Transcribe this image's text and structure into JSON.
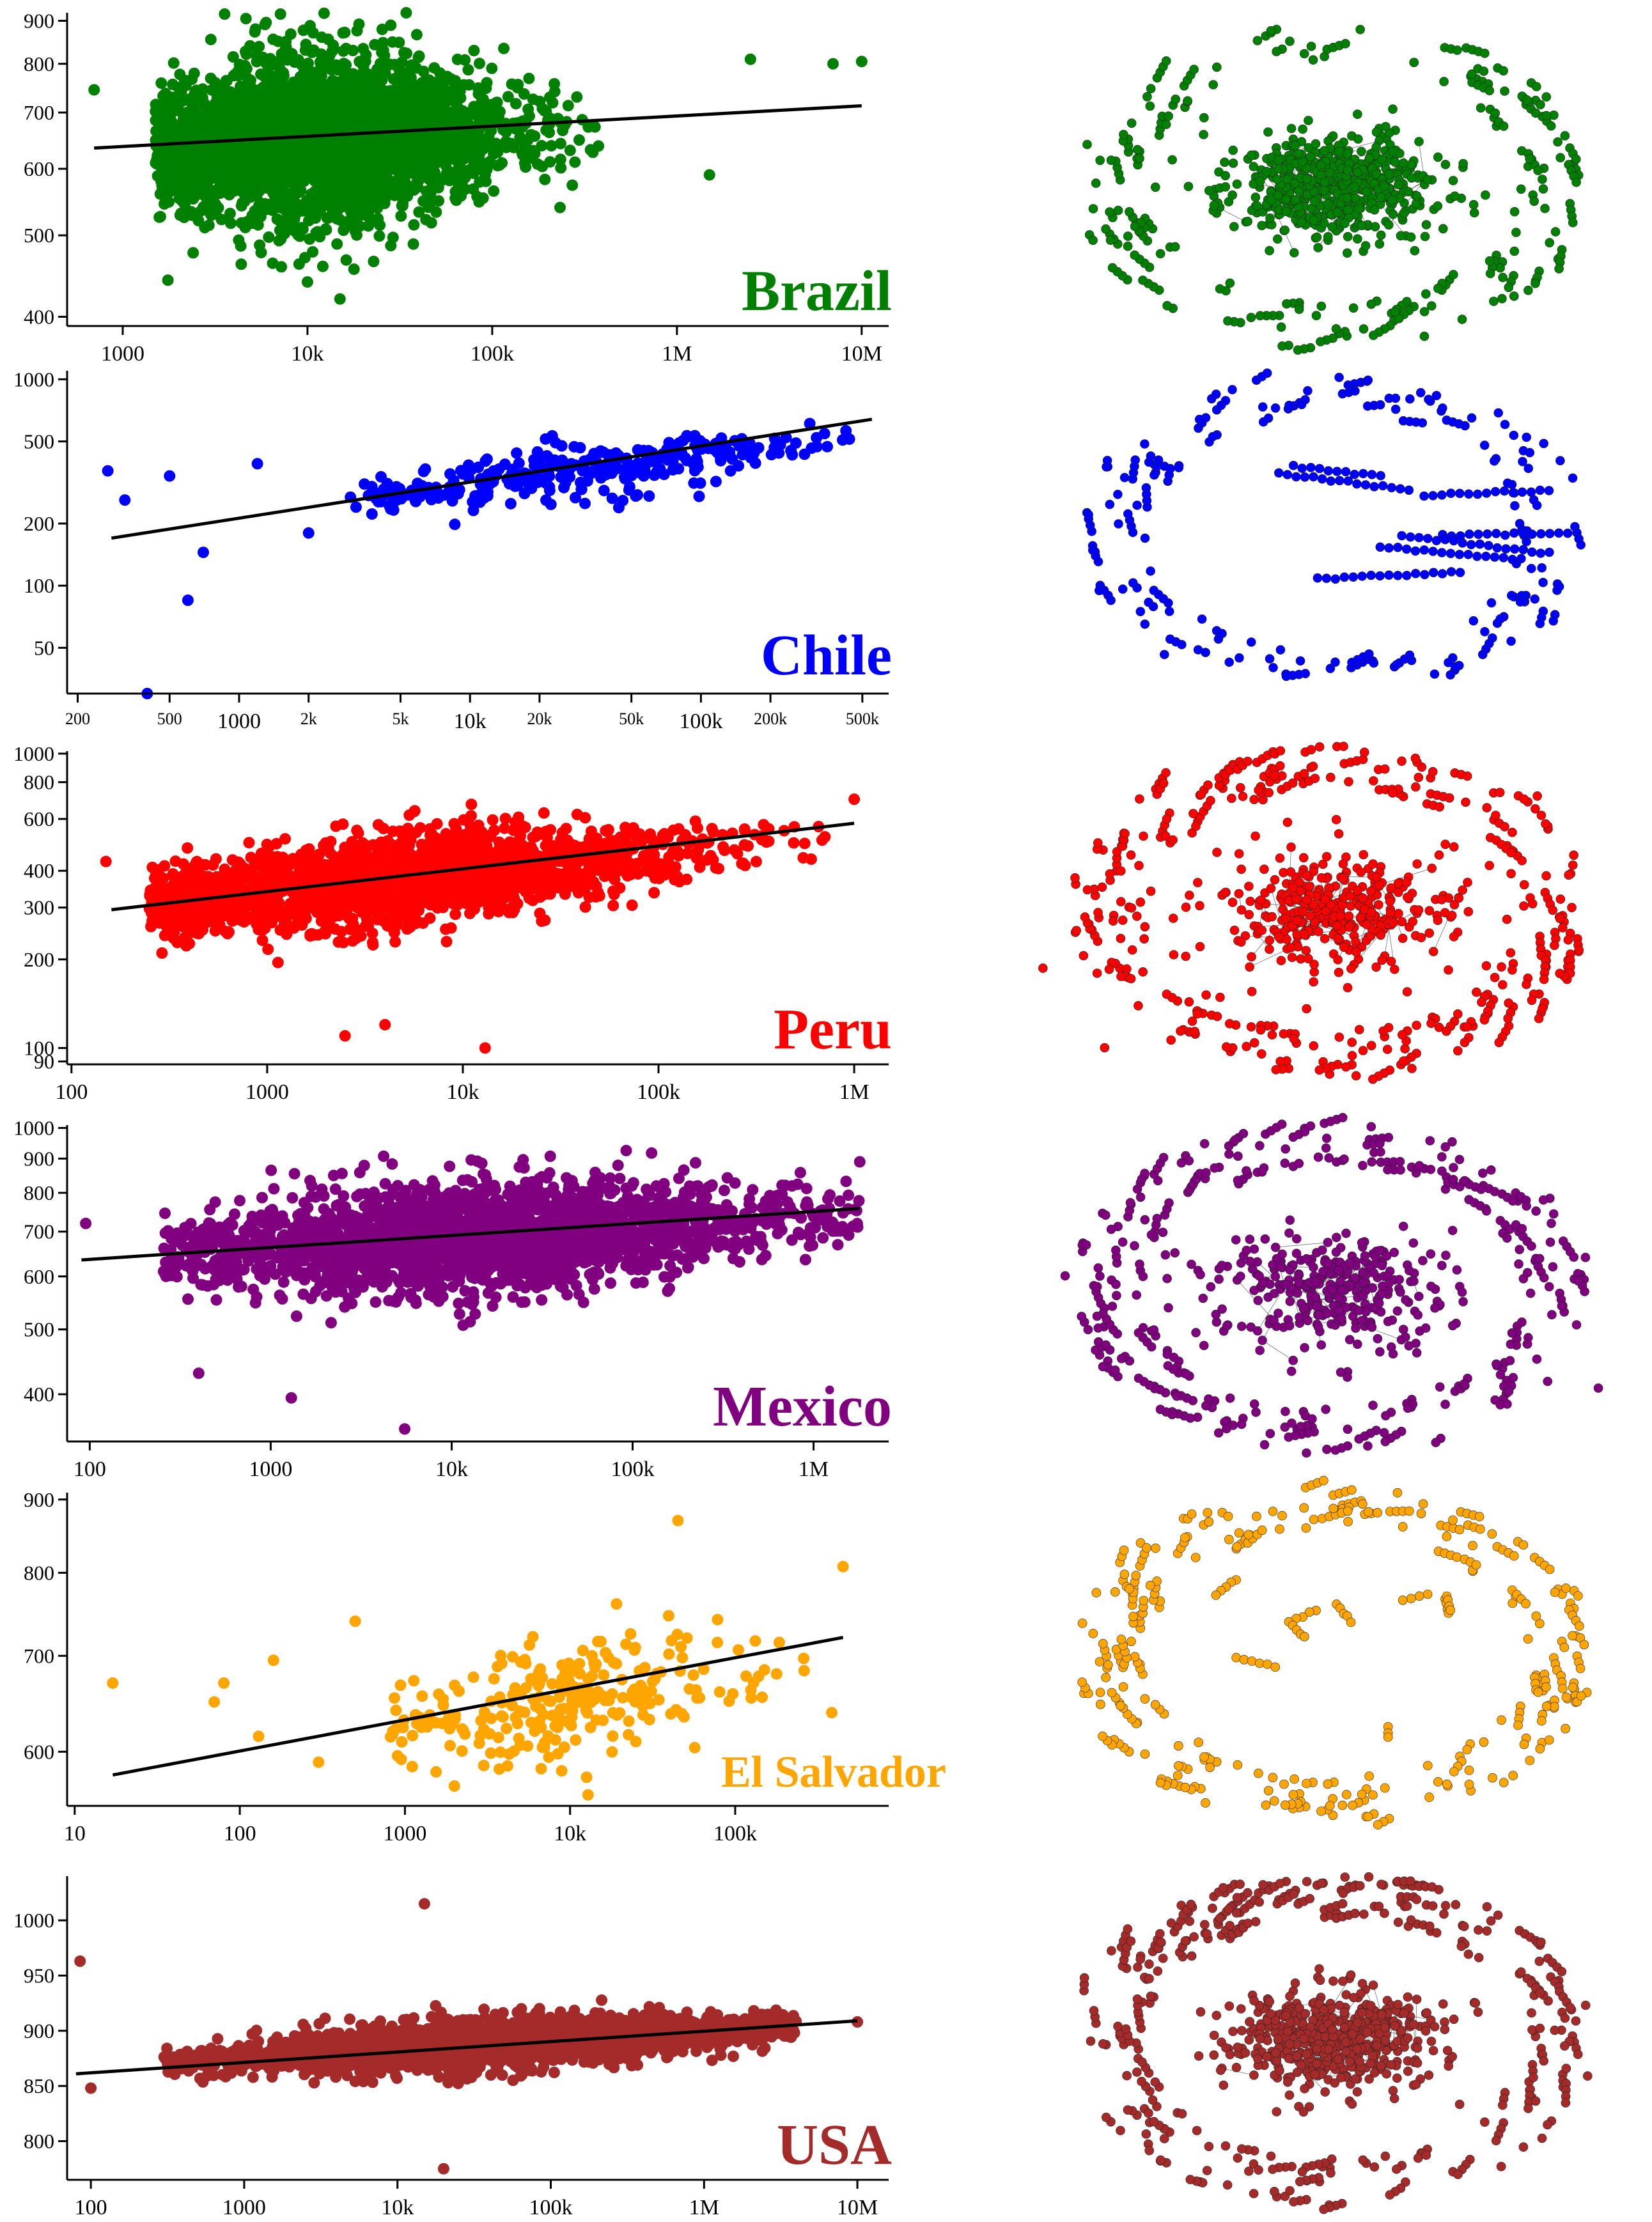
{
  "chart_data": [
    {
      "type": "scatter",
      "country": "Brazil",
      "color": "#008000",
      "x_scale": "log",
      "y_scale": "log",
      "xlim": [
        500,
        14000000
      ],
      "ylim": [
        390,
        920
      ],
      "x_ticks": [
        1000,
        10000,
        100000,
        1000000,
        10000000
      ],
      "x_tick_labels": [
        "1000",
        "10k",
        "100k",
        "1M",
        "10M"
      ],
      "y_ticks": [
        400,
        500,
        600,
        700,
        800,
        900
      ],
      "y_tick_labels": [
        "400",
        "500",
        "600",
        "700",
        "800",
        "900"
      ],
      "trend_line": {
        "x": [
          700,
          10000000
        ],
        "y": [
          635,
          713
        ]
      },
      "point_cloud": {
        "count": 3000,
        "x_range": [
          1500,
          400000
        ],
        "x_center": 12000,
        "y_center": 650,
        "y_spread": 0.11
      },
      "outliers": [
        {
          "x": 15000,
          "y": 420
        },
        {
          "x": 10000,
          "y": 440
        },
        {
          "x": 700,
          "y": 745
        },
        {
          "x": 10000000,
          "y": 805
        },
        {
          "x": 7000000,
          "y": 800
        },
        {
          "x": 1500000,
          "y": 590
        },
        {
          "x": 2500000,
          "y": 810
        },
        {
          "x": 3000,
          "y": 855
        }
      ]
    },
    {
      "type": "scatter",
      "country": "Chile",
      "color": "#0000ff",
      "x_scale": "log",
      "y_scale": "log",
      "xlim": [
        180,
        650000
      ],
      "ylim": [
        30,
        1100
      ],
      "x_ticks": [
        200,
        500,
        1000,
        2000,
        5000,
        10000,
        20000,
        50000,
        100000,
        200000,
        500000
      ],
      "x_tick_labels": [
        "200",
        "500",
        "1000",
        "2k",
        "5k",
        "10k",
        "20k",
        "50k",
        "100k",
        "200k",
        "500k"
      ],
      "y_ticks": [
        50,
        100,
        200,
        500,
        1000
      ],
      "y_tick_labels": [
        "50",
        "100",
        "200",
        "500",
        "1000"
      ],
      "trend_line": {
        "x": [
          280,
          550000
        ],
        "y": [
          170,
          640
        ]
      },
      "point_cloud": {
        "count": 320,
        "x_range": [
          3000,
          550000
        ],
        "x_center": 30000,
        "y_center": 360,
        "y_spread": 0.14
      },
      "outliers": [
        {
          "x": 400,
          "y": 30
        },
        {
          "x": 600,
          "y": 85
        },
        {
          "x": 700,
          "y": 145
        },
        {
          "x": 270,
          "y": 360
        },
        {
          "x": 320,
          "y": 260
        },
        {
          "x": 500,
          "y": 340
        },
        {
          "x": 1200,
          "y": 390
        },
        {
          "x": 2000,
          "y": 180
        }
      ]
    },
    {
      "type": "scatter",
      "country": "Peru",
      "color": "#ff0000",
      "x_scale": "log",
      "y_scale": "log",
      "xlim": [
        95,
        1500000
      ],
      "ylim": [
        88,
        1020
      ],
      "x_ticks": [
        100,
        1000,
        10000,
        100000,
        1000000
      ],
      "x_tick_labels": [
        "100",
        "1000",
        "10k",
        "100k",
        "1M"
      ],
      "y_ticks": [
        90,
        100,
        200,
        300,
        400,
        600,
        800,
        1000
      ],
      "y_tick_labels": [
        "90",
        "100",
        "200",
        "300",
        "400",
        "600",
        "800",
        "1000"
      ],
      "trend_line": {
        "x": [
          160,
          1000000
        ],
        "y": [
          295,
          580
        ]
      },
      "point_cloud": {
        "count": 2200,
        "x_range": [
          250,
          900000
        ],
        "x_center": 4000,
        "y_center": 370,
        "y_spread": 0.16
      },
      "outliers": [
        {
          "x": 13000,
          "y": 100
        },
        {
          "x": 2500,
          "y": 110
        },
        {
          "x": 4000,
          "y": 120
        },
        {
          "x": 150,
          "y": 430
        },
        {
          "x": 1000000,
          "y": 700
        }
      ]
    },
    {
      "type": "scatter",
      "country": "Mexico",
      "color": "#800080",
      "x_scale": "log",
      "y_scale": "log",
      "xlim": [
        75,
        2600000
      ],
      "ylim": [
        340,
        1010
      ],
      "x_ticks": [
        100,
        1000,
        10000,
        100000,
        1000000
      ],
      "x_tick_labels": [
        "100",
        "1000",
        "10k",
        "100k",
        "1M"
      ],
      "y_ticks": [
        400,
        500,
        600,
        700,
        800,
        900,
        1000
      ],
      "y_tick_labels": [
        "400",
        "500",
        "600",
        "700",
        "800",
        "900",
        "1000"
      ],
      "trend_line": {
        "x": [
          90,
          1800000
        ],
        "y": [
          635,
          758
        ]
      },
      "point_cloud": {
        "count": 2300,
        "x_range": [
          250,
          1800000
        ],
        "x_center": 15000,
        "y_center": 690,
        "y_spread": 0.09
      },
      "outliers": [
        {
          "x": 5500,
          "y": 355
        },
        {
          "x": 1300,
          "y": 395
        },
        {
          "x": 400,
          "y": 430
        },
        {
          "x": 95,
          "y": 720
        },
        {
          "x": 1800000,
          "y": 890
        }
      ]
    },
    {
      "type": "scatter",
      "country": "El Salvador",
      "color": "#ffa500",
      "x_scale": "log",
      "y_scale": "log",
      "xlim": [
        9,
        850000
      ],
      "ylim": [
        550,
        910
      ],
      "x_ticks": [
        10,
        100,
        1000,
        10000,
        100000
      ],
      "x_tick_labels": [
        "10",
        "100",
        "1000",
        "10k",
        "100k"
      ],
      "y_ticks": [
        600,
        700,
        800,
        900
      ],
      "y_tick_labels": [
        "600",
        "700",
        "800",
        "900"
      ],
      "trend_line": {
        "x": [
          17,
          450000
        ],
        "y": [
          578,
          721
        ]
      },
      "point_cloud": {
        "count": 260,
        "x_range": [
          800,
          450000
        ],
        "x_center": 8000,
        "y_center": 650,
        "y_spread": 0.05
      },
      "outliers": [
        {
          "x": 17,
          "y": 670
        },
        {
          "x": 70,
          "y": 650
        },
        {
          "x": 80,
          "y": 670
        },
        {
          "x": 130,
          "y": 615
        },
        {
          "x": 160,
          "y": 695
        },
        {
          "x": 300,
          "y": 590
        },
        {
          "x": 500,
          "y": 740
        },
        {
          "x": 45000,
          "y": 870
        },
        {
          "x": 450000,
          "y": 808
        }
      ]
    },
    {
      "type": "scatter",
      "country": "USA",
      "color": "#a52a2a",
      "x_scale": "log",
      "y_scale": "linear",
      "xlim": [
        70,
        16000000
      ],
      "ylim": [
        765,
        1040
      ],
      "x_ticks": [
        100,
        1000,
        10000,
        100000,
        1000000,
        10000000
      ],
      "x_tick_labels": [
        "100",
        "1000",
        "10k",
        "100k",
        "1M",
        "10M"
      ],
      "y_ticks": [
        800,
        850,
        900,
        950,
        1000
      ],
      "y_tick_labels": [
        "800",
        "850",
        "900",
        "950",
        "1000"
      ],
      "trend_line": {
        "x": [
          80,
          10000000
        ],
        "y": [
          861,
          909
        ]
      },
      "point_cloud": {
        "count": 2400,
        "x_range": [
          300,
          4000000
        ],
        "x_center": 40000,
        "y_center": 888,
        "y_spread": 25
      },
      "outliers": [
        {
          "x": 85,
          "y": 963
        },
        {
          "x": 100,
          "y": 848
        },
        {
          "x": 10000000,
          "y": 908
        },
        {
          "x": 15000,
          "y": 1015
        },
        {
          "x": 20000,
          "y": 775
        }
      ]
    }
  ],
  "networks": [
    {
      "country": "Brazil",
      "color": "#008000",
      "core_nodes": 600,
      "core_shape": "dense-blob",
      "ring_nodes": 150
    },
    {
      "country": "Chile",
      "color": "#0000ff",
      "core_nodes": 90,
      "core_shape": "chains",
      "ring_nodes": 140
    },
    {
      "country": "Peru",
      "color": "#ff0000",
      "core_nodes": 400,
      "core_shape": "star",
      "ring_nodes": 220
    },
    {
      "country": "Mexico",
      "color": "#800080",
      "core_nodes": 350,
      "core_shape": "star",
      "ring_nodes": 220
    },
    {
      "country": "El Salvador",
      "color": "#ffa500",
      "core_nodes": 30,
      "core_shape": "fragments",
      "ring_nodes": 200
    },
    {
      "country": "USA",
      "color": "#a52a2a",
      "core_nodes": 500,
      "core_shape": "dense-blob",
      "ring_nodes": 240
    }
  ]
}
